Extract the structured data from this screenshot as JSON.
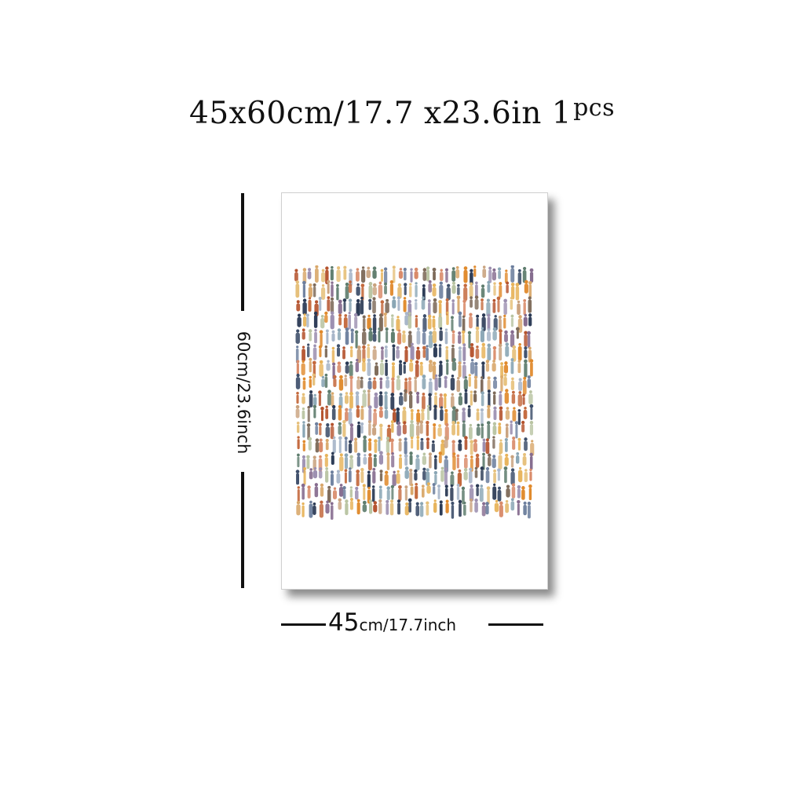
{
  "header": {
    "title_main": "45x60cm/17.7 x23.6in 1",
    "title_suffix": "pcs"
  },
  "dimensions": {
    "height_label": "60cm/23.6inch",
    "width_number": "45",
    "width_unit": "cm/17.7inch"
  },
  "artwork": {
    "description_icon": "crowd-figures-painting",
    "palette": [
      "#2b3a55",
      "#e08a2c",
      "#c9a27e",
      "#8aa6b5",
      "#6d7f9e",
      "#b5542f",
      "#e6c07a",
      "#7e6b5a",
      "#a8b6c9",
      "#d9a86b",
      "#5f7d6e",
      "#c46a3e",
      "#9c8fb0",
      "#e7b35a",
      "#3e4f6b",
      "#b9c4a2",
      "#d98b6a",
      "#866c8f"
    ]
  }
}
